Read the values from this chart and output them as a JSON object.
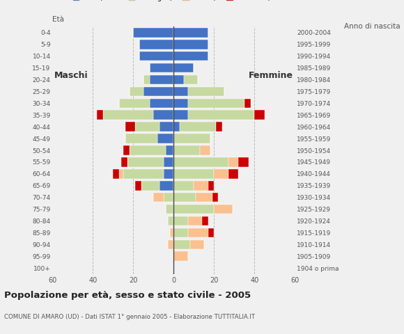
{
  "age_groups": [
    "100+",
    "95-99",
    "90-94",
    "85-89",
    "80-84",
    "75-79",
    "70-74",
    "65-69",
    "60-64",
    "55-59",
    "50-54",
    "45-49",
    "40-44",
    "35-39",
    "30-34",
    "25-29",
    "20-24",
    "15-19",
    "10-14",
    "5-9",
    "0-4"
  ],
  "birth_years": [
    "1904 o prima",
    "1905-1909",
    "1910-1914",
    "1915-1919",
    "1920-1924",
    "1925-1929",
    "1930-1934",
    "1935-1939",
    "1940-1944",
    "1945-1949",
    "1950-1954",
    "1955-1959",
    "1960-1964",
    "1965-1969",
    "1970-1974",
    "1975-1979",
    "1980-1984",
    "1985-1989",
    "1990-1994",
    "1995-1999",
    "2000-2004"
  ],
  "colors": {
    "celibe": "#4472c4",
    "coniugato": "#c6d9a0",
    "vedovo": "#fac090",
    "divorziato": "#cc0000"
  },
  "males": {
    "celibe": [
      0,
      0,
      0,
      0,
      0,
      0,
      0,
      7,
      5,
      5,
      4,
      8,
      7,
      10,
      12,
      15,
      12,
      12,
      17,
      17,
      20
    ],
    "coniugato": [
      0,
      0,
      0,
      0,
      3,
      4,
      5,
      9,
      20,
      18,
      18,
      16,
      12,
      25,
      15,
      7,
      3,
      0,
      0,
      0,
      0
    ],
    "vedovo": [
      0,
      0,
      3,
      2,
      0,
      0,
      5,
      0,
      2,
      0,
      0,
      0,
      0,
      0,
      0,
      0,
      0,
      0,
      0,
      0,
      0
    ],
    "divorziato": [
      0,
      0,
      0,
      0,
      0,
      0,
      0,
      3,
      3,
      3,
      3,
      0,
      5,
      3,
      0,
      0,
      0,
      0,
      0,
      0,
      0
    ]
  },
  "females": {
    "celibe": [
      0,
      0,
      0,
      0,
      0,
      0,
      0,
      0,
      0,
      0,
      0,
      0,
      3,
      7,
      7,
      7,
      5,
      10,
      17,
      17,
      17
    ],
    "coniugato": [
      0,
      0,
      8,
      7,
      7,
      20,
      11,
      10,
      20,
      27,
      13,
      18,
      18,
      33,
      28,
      18,
      7,
      0,
      0,
      0,
      0
    ],
    "vedovo": [
      0,
      7,
      7,
      10,
      7,
      9,
      8,
      7,
      7,
      5,
      5,
      0,
      0,
      0,
      0,
      0,
      0,
      0,
      0,
      0,
      0
    ],
    "divorziato": [
      0,
      0,
      0,
      3,
      3,
      0,
      3,
      3,
      5,
      5,
      0,
      0,
      3,
      5,
      3,
      0,
      0,
      0,
      0,
      0,
      0
    ]
  },
  "title": "Popolazione per età, sesso e stato civile - 2005",
  "subtitle": "COMUNE DI AMARO (UD) - Dati ISTAT 1° gennaio 2005 - Elaborazione TUTTITALIA.IT",
  "label_eta": "Età",
  "label_anno": "Anno di nascita",
  "label_maschi": "Maschi",
  "label_femmine": "Femmine",
  "xlim": 60,
  "background_color": "#f0f0f0"
}
